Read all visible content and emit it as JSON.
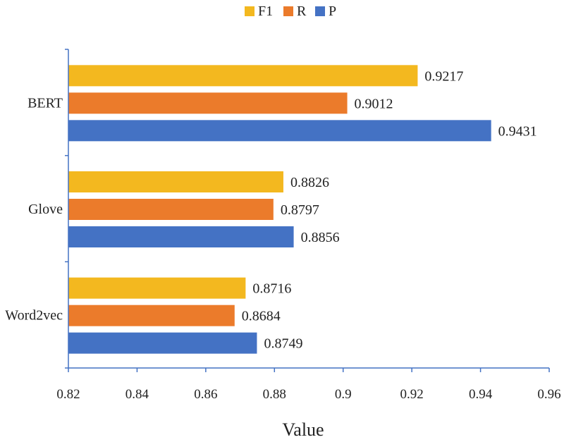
{
  "chart_data": {
    "type": "bar",
    "orientation": "horizontal",
    "categories": [
      "BERT",
      "Glove",
      "Word2vec"
    ],
    "series": [
      {
        "name": "F1",
        "color": "#F3B81F",
        "values": [
          0.9217,
          0.8826,
          0.8716
        ],
        "labels": [
          "0.9217",
          "0.8826",
          "0.8716"
        ]
      },
      {
        "name": "R",
        "color": "#EB7B2B",
        "values": [
          0.9012,
          0.8797,
          0.8684
        ],
        "labels": [
          "0.9012",
          "0.8797",
          "0.8684"
        ]
      },
      {
        "name": "P",
        "color": "#4472C4",
        "values": [
          0.9431,
          0.8856,
          0.8749
        ],
        "labels": [
          "0.9431",
          "0.8856",
          "0.8749"
        ]
      }
    ],
    "xlim": [
      0.82,
      0.96
    ],
    "xticks": [
      0.82,
      0.84,
      0.86,
      0.88,
      0.9,
      0.92,
      0.94,
      0.96
    ],
    "xtick_labels": [
      "0.82",
      "0.84",
      "0.86",
      "0.88",
      "0.9",
      "0.92",
      "0.94",
      "0.96"
    ],
    "xlabel": "Value",
    "ylabel": "",
    "title": "",
    "legend_position": "top-center",
    "grid": false,
    "axis_color": "#4472C4"
  }
}
